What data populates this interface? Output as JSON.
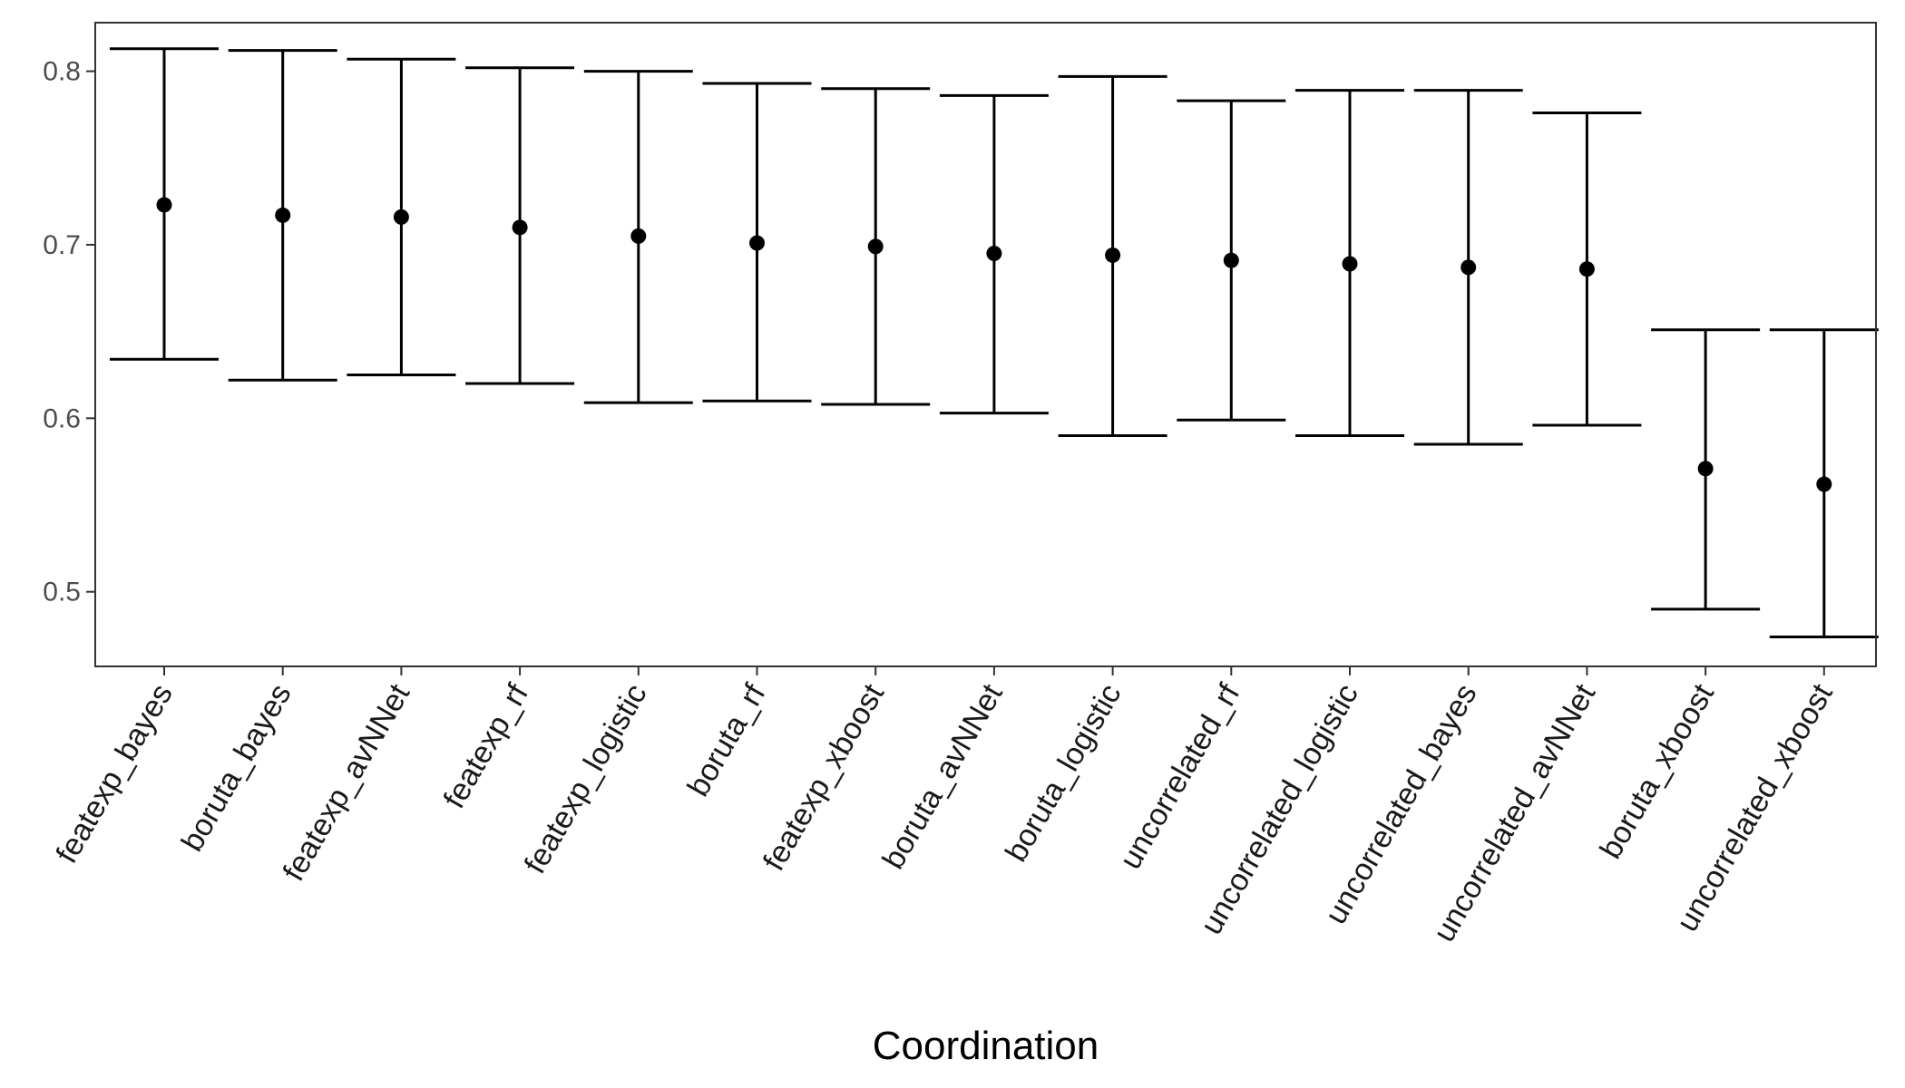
{
  "chart_data": {
    "type": "errorbar",
    "title": "",
    "xlabel": "Coordination",
    "ylabel": "",
    "ylim": [
      0.457,
      0.828
    ],
    "yticks": [
      0.5,
      0.6,
      0.7,
      0.8
    ],
    "grid": false,
    "legend": "none",
    "categories": [
      "featexp_bayes",
      "boruta_bayes",
      "featexp_avNNet",
      "featexp_rf",
      "featexp_logistic",
      "boruta_rf",
      "featexp_xboost",
      "boruta_avNNet",
      "boruta_logistic",
      "uncorrelated_rf",
      "uncorrelated_logistic",
      "uncorrelated_bayes",
      "uncorrelated_avNNet",
      "boruta_xboost",
      "uncorrelated_xboost"
    ],
    "series": [
      {
        "estimate": [
          0.723,
          0.717,
          0.716,
          0.71,
          0.705,
          0.701,
          0.699,
          0.695,
          0.694,
          0.691,
          0.689,
          0.687,
          0.686,
          0.571,
          0.562
        ],
        "lower": [
          0.634,
          0.622,
          0.625,
          0.62,
          0.609,
          0.61,
          0.608,
          0.603,
          0.59,
          0.599,
          0.59,
          0.585,
          0.596,
          0.49,
          0.474
        ],
        "upper": [
          0.813,
          0.812,
          0.807,
          0.802,
          0.8,
          0.793,
          0.79,
          0.786,
          0.797,
          0.783,
          0.789,
          0.789,
          0.776,
          0.651,
          0.651
        ]
      }
    ],
    "colors": {
      "marks": "#000000",
      "frame": "#333333",
      "tick_text": "#4d4d4d",
      "x_tick_text": "#1a1a1a"
    }
  }
}
